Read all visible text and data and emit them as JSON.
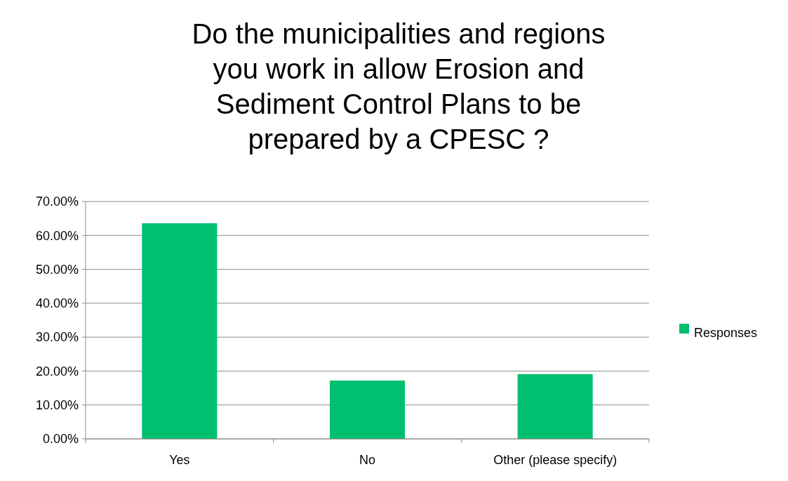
{
  "chart_data": {
    "type": "bar",
    "title": "Do the municipalities and regions you work in allow Erosion and Sediment Control Plans to be prepared by a CPESC ?",
    "categories": [
      "Yes",
      "No",
      "Other (please specify)"
    ],
    "series": [
      {
        "name": "Responses",
        "color": "#00bf6f",
        "values": [
          63.6,
          17.2,
          19.1
        ]
      }
    ],
    "ylim": [
      0,
      70
    ],
    "yticks": [
      {
        "value": 0,
        "label": "0.00%"
      },
      {
        "value": 10,
        "label": "10.00%"
      },
      {
        "value": 20,
        "label": "20.00%"
      },
      {
        "value": 30,
        "label": "30.00%"
      },
      {
        "value": 40,
        "label": "40.00%"
      },
      {
        "value": 50,
        "label": "50.00%"
      },
      {
        "value": 60,
        "label": "60.00%"
      },
      {
        "value": 70,
        "label": "70.00%"
      }
    ],
    "grid": "y",
    "legend": "right"
  }
}
